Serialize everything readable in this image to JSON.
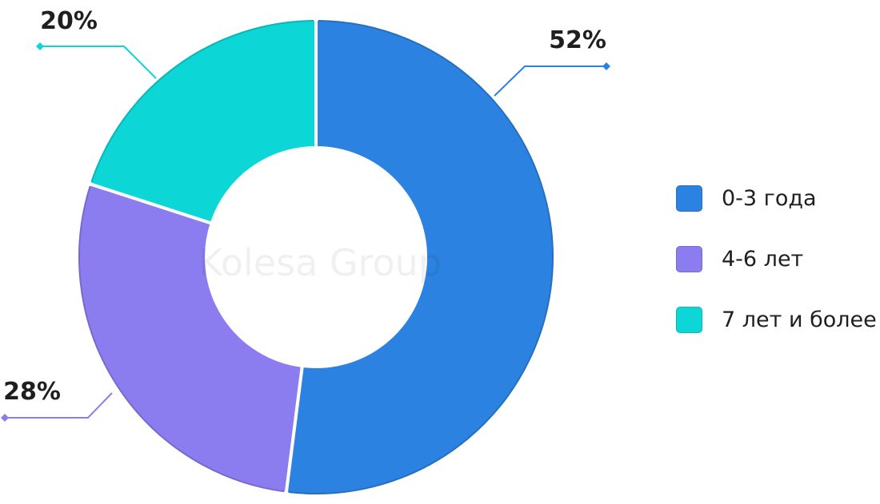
{
  "chart_data": {
    "type": "pie",
    "variant": "donut",
    "categories": [
      "0-3 года",
      "4-6 лет",
      "7 лет и более"
    ],
    "values": [
      52,
      28,
      20
    ],
    "data_labels": [
      "52%",
      "28%",
      "20%"
    ],
    "colors": [
      "#2c82e0",
      "#8b7df0",
      "#0cd6d6"
    ],
    "legend_position": "right",
    "watermark": "Kolesa Group"
  }
}
